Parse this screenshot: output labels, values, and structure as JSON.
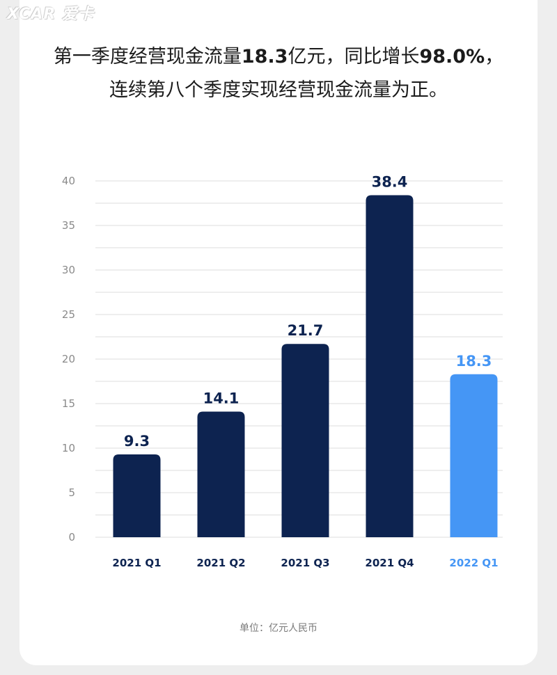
{
  "watermark": "XCAR 爱卡",
  "headline": {
    "line1_a": "第一季度经营现金流量",
    "line1_b": "18.3",
    "line1_c": "亿元，同比增长",
    "line1_d": "98.0%",
    "line1_e": "，",
    "line2": "连续第八个季度实现经营现金流量为正。"
  },
  "unit_label": "单位：亿元人民币",
  "colors": {
    "dark_bar": "#0d2350",
    "highlight_bar": "#4596f5",
    "grid": "#dddddd",
    "tick_text": "#8a8a8a",
    "label_dark": "#0d2350"
  },
  "chart_data": {
    "type": "bar",
    "categories": [
      "2021 Q1",
      "2021 Q2",
      "2021 Q3",
      "2021 Q4",
      "2022 Q1"
    ],
    "values": [
      9.3,
      14.1,
      21.7,
      38.4,
      18.3
    ],
    "highlight": [
      false,
      false,
      false,
      false,
      true
    ],
    "title": "",
    "xlabel": "",
    "ylabel": "",
    "ylim": [
      0,
      40
    ],
    "yticks": [
      0,
      5,
      10,
      15,
      20,
      25,
      30,
      35,
      40
    ],
    "grid": true,
    "legend": "none"
  }
}
